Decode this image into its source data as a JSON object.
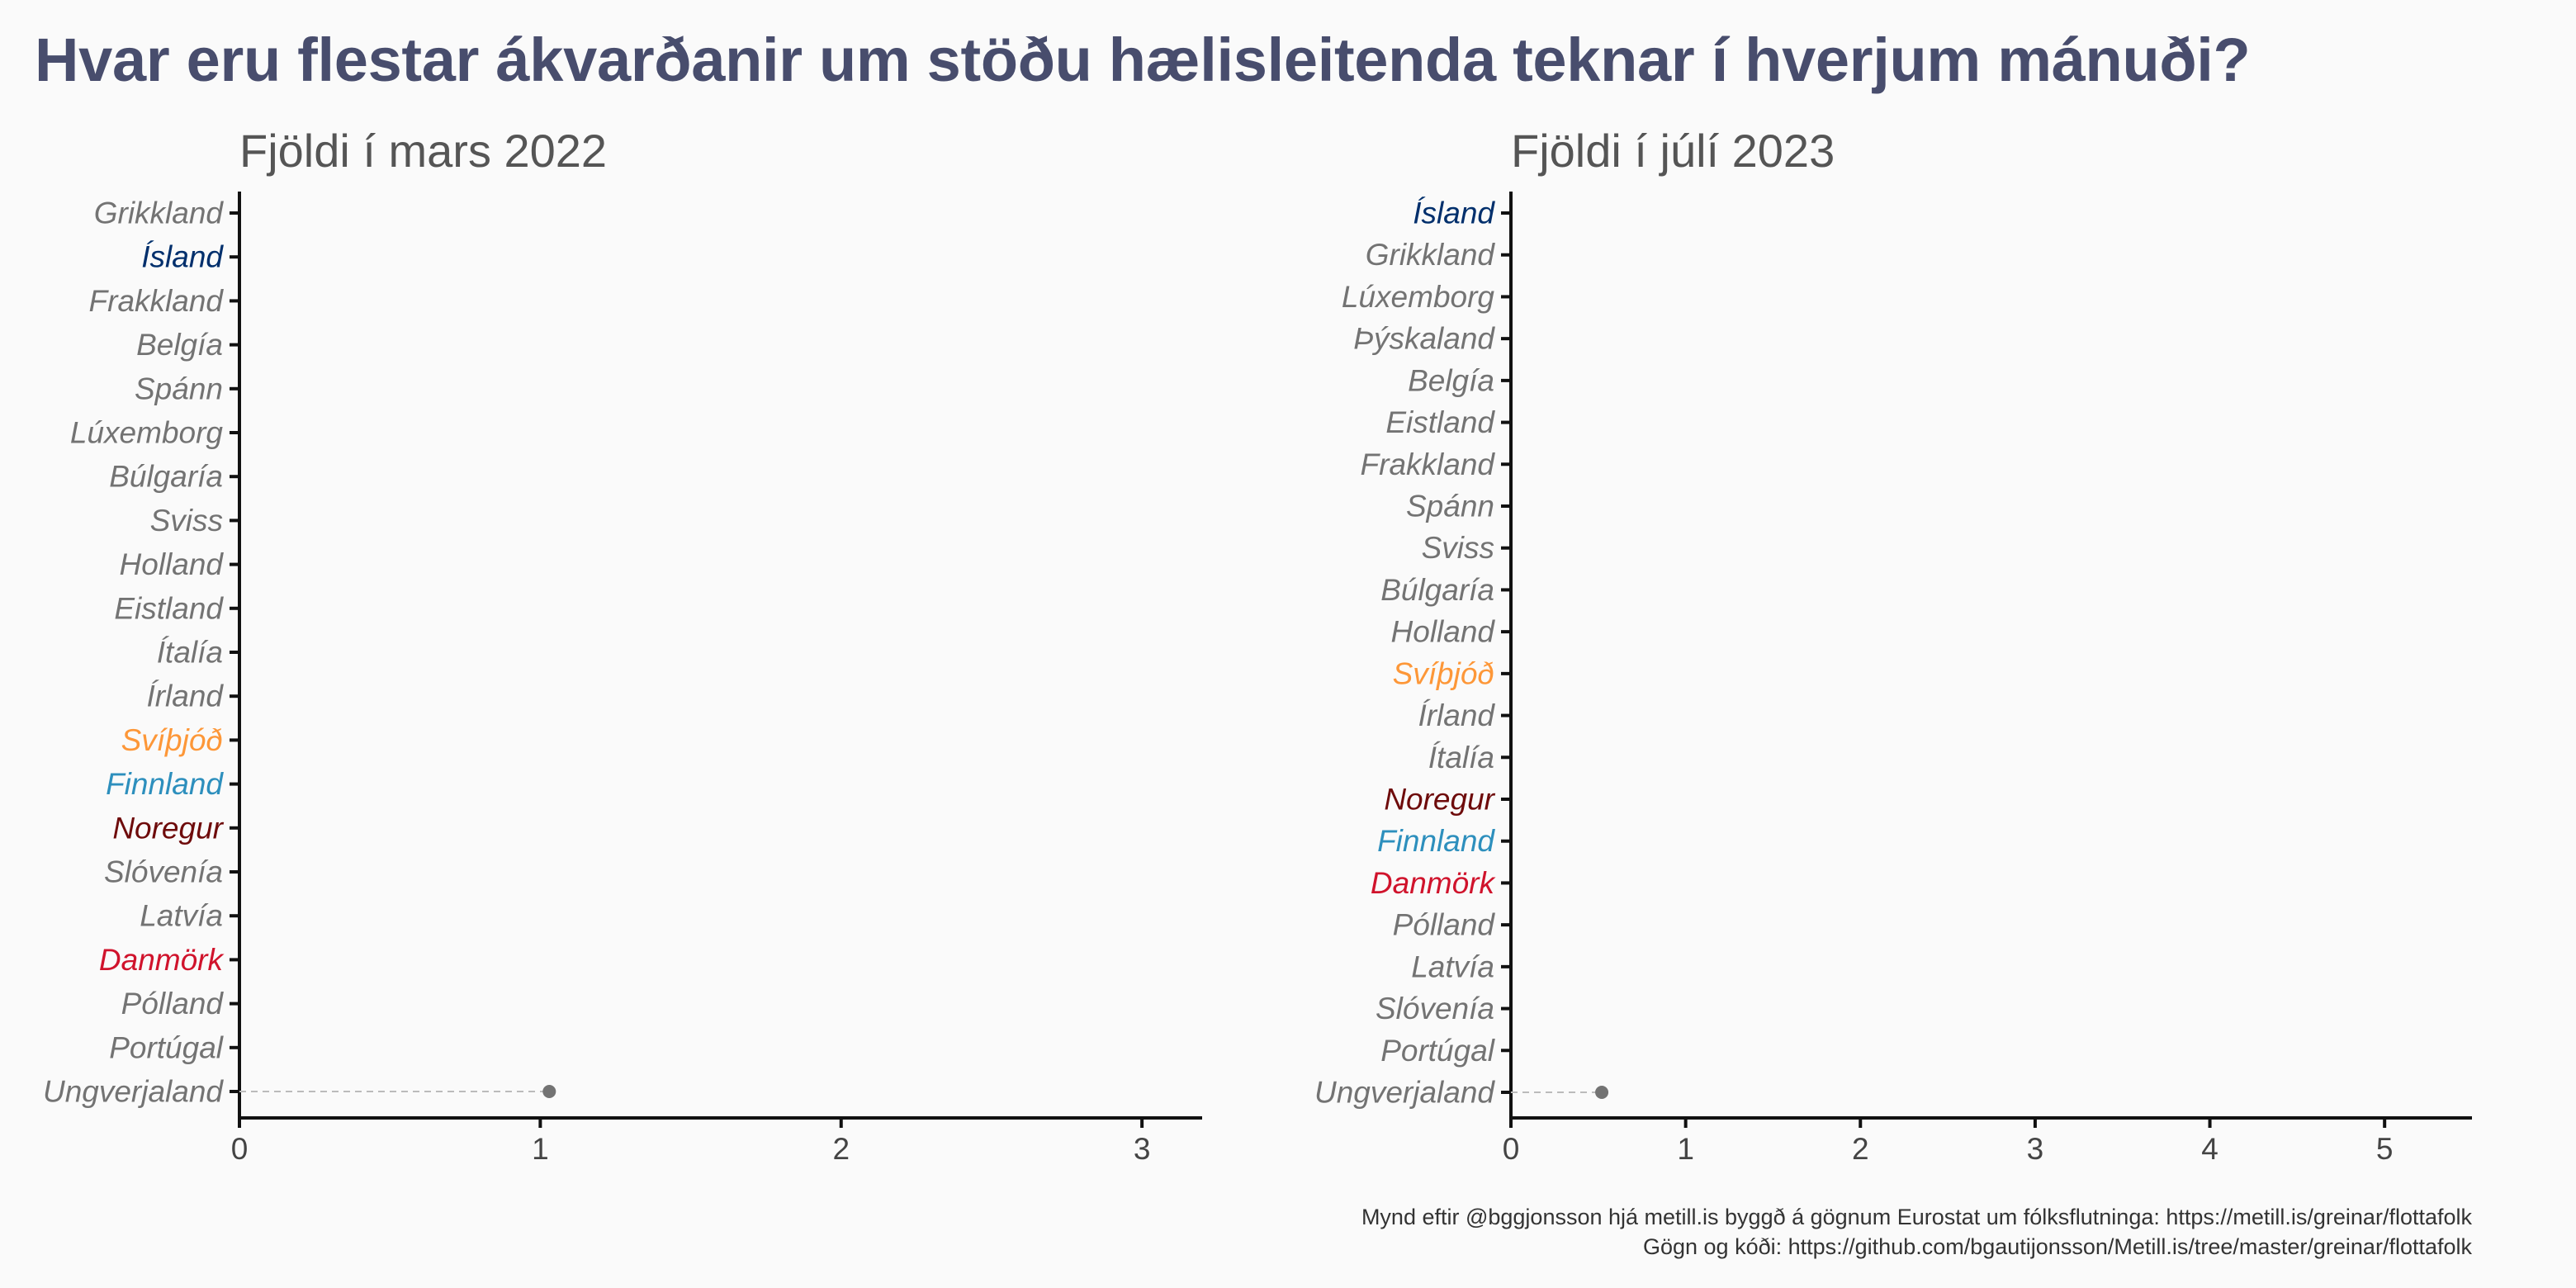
{
  "title": "Hvar eru flestar ákvarðanir um stöðu hælisleitenda teknar í hverjum mánuði?",
  "caption": {
    "line1": "Mynd eftir @bggjonsson hjá metill.is byggð á gögnum Eurostat um fólksflutninga: https://metill.is/greinar/flottafolk",
    "line2": "Gögn og kóði: https://github.com/bgautijonsson/Metill.is/tree/master/greinar/flottafolk"
  },
  "colors": {
    "default": "#737373",
    "Ísland": "#002f6c",
    "Svíþjóð": "#fd9738",
    "Finnland": "#2d8fbd",
    "Noregur": "#6e0b0b",
    "Danmörk": "#d0132c",
    "point": "#737373",
    "title": "#484d6d"
  },
  "chart_data": [
    {
      "type": "scatter",
      "subtype": "dot-plot",
      "title": "Fjöldi í mars 2022",
      "categories": [
        "Grikkland",
        "Ísland",
        "Frakkland",
        "Belgía",
        "Spánn",
        "Lúxemborg",
        "Búlgaría",
        "Sviss",
        "Holland",
        "Eistland",
        "Ítalía",
        "Írland",
        "Svíþjóð",
        "Finnland",
        "Noregur",
        "Slóvenía",
        "Latvía",
        "Danmörk",
        "Pólland",
        "Portúgal",
        "Ungverjaland"
      ],
      "values": [
        null,
        null,
        null,
        null,
        null,
        null,
        null,
        null,
        null,
        null,
        null,
        null,
        null,
        null,
        null,
        null,
        null,
        null,
        null,
        null,
        1.03
      ],
      "xlim": [
        0,
        3.2
      ],
      "xticks": [
        0,
        1,
        2,
        3
      ],
      "grid": false
    },
    {
      "type": "scatter",
      "subtype": "dot-plot",
      "title": "Fjöldi í júlí 2023",
      "categories": [
        "Ísland",
        "Grikkland",
        "Lúxemborg",
        "Þýskaland",
        "Belgía",
        "Eistland",
        "Frakkland",
        "Spánn",
        "Sviss",
        "Búlgaría",
        "Holland",
        "Svíþjóð",
        "Írland",
        "Ítalía",
        "Noregur",
        "Finnland",
        "Danmörk",
        "Pólland",
        "Latvía",
        "Slóvenía",
        "Portúgal",
        "Ungverjaland"
      ],
      "values": [
        null,
        null,
        null,
        null,
        null,
        null,
        null,
        null,
        null,
        null,
        null,
        null,
        null,
        null,
        null,
        null,
        null,
        null,
        null,
        null,
        null,
        0.52
      ],
      "xlim": [
        0,
        5.5
      ],
      "xticks": [
        0,
        1,
        2,
        3,
        4,
        5
      ],
      "grid": false
    }
  ]
}
